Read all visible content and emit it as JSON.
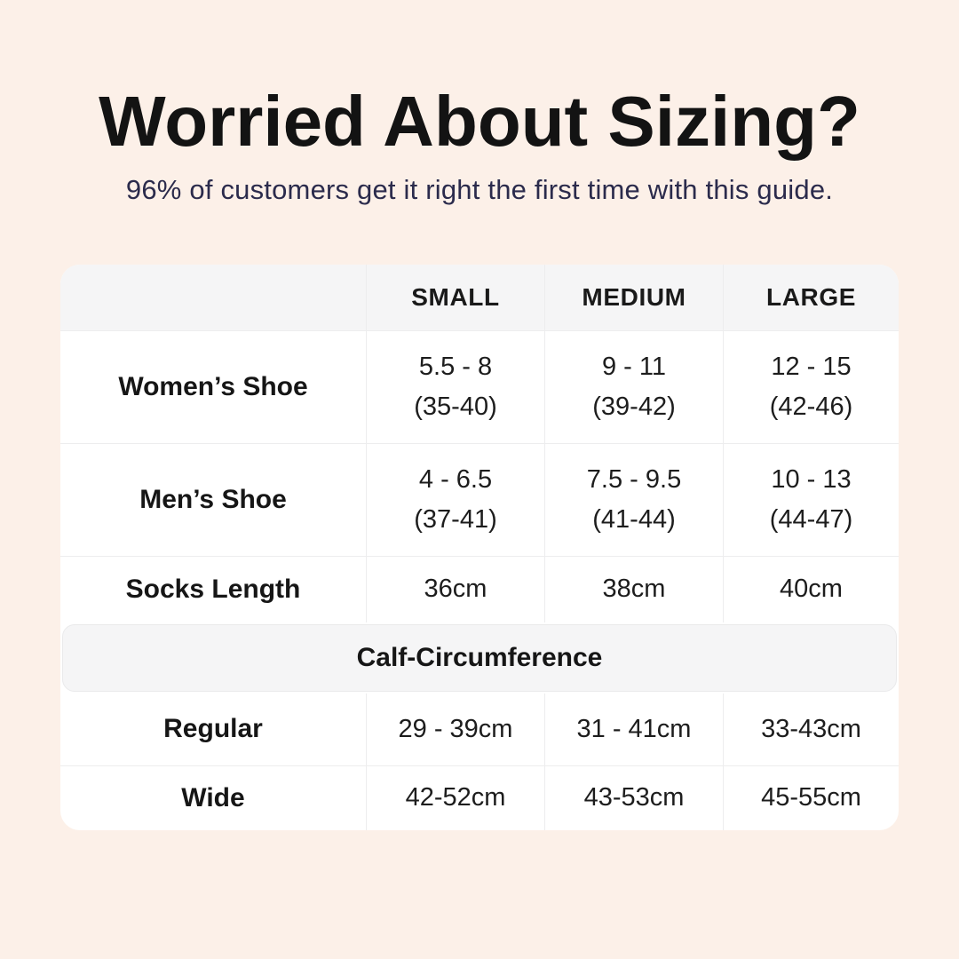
{
  "page": {
    "title": "Worried About Sizing?",
    "subtitle": "96% of customers get it right the first time with this guide.",
    "colors": {
      "background": "#fcf0e8",
      "card": "#ffffff",
      "header_band": "#f5f5f6",
      "border": "#ededee",
      "title_text": "#131313",
      "subtitle_text": "#2b2b4c",
      "cell_text": "#1d1d1d"
    }
  },
  "table": {
    "columns": [
      "SMALL",
      "MEDIUM",
      "LARGE"
    ],
    "rows": [
      {
        "label": "Women’s Shoe",
        "cells": [
          {
            "l1": "5.5 - 8",
            "l2": "(35-40)"
          },
          {
            "l1": "9 - 11",
            "l2": "(39-42)"
          },
          {
            "l1": "12 - 15",
            "l2": "(42-46)"
          }
        ]
      },
      {
        "label": "Men’s Shoe",
        "cells": [
          {
            "l1": "4 - 6.5",
            "l2": "(37-41)"
          },
          {
            "l1": "7.5 - 9.5",
            "l2": "(41-44)"
          },
          {
            "l1": "10 - 13",
            "l2": "(44-47)"
          }
        ]
      },
      {
        "label": "Socks Length",
        "cells": [
          "36cm",
          "38cm",
          "40cm"
        ]
      }
    ],
    "section": {
      "label": "Calf-Circumference",
      "rows": [
        {
          "label": "Regular",
          "cells": [
            "29 - 39cm",
            "31 - 41cm",
            "33-43cm"
          ]
        },
        {
          "label": "Wide",
          "cells": [
            "42-52cm",
            "43-53cm",
            "45-55cm"
          ]
        }
      ]
    }
  }
}
